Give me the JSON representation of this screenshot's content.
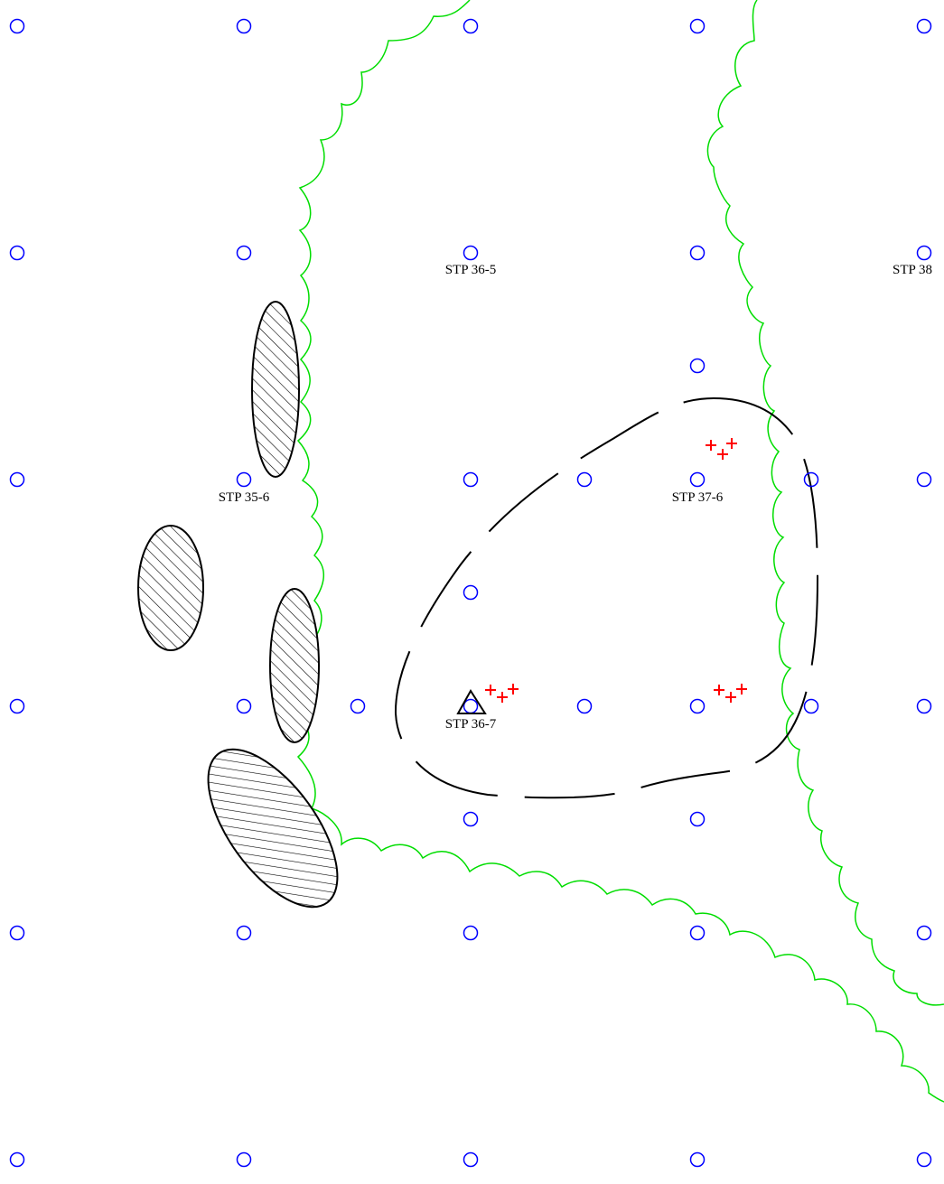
{
  "map": {
    "labels": {
      "stp_36_5": "STP 36-5",
      "stp_38_partial": "STP 38",
      "stp_35_6": "STP 35-6",
      "stp_37_6": "STP 37-6",
      "stp_36_7": "STP 36-7"
    },
    "colors": {
      "test_pit": "#0000ff",
      "vegetation_line": "#00dd00",
      "artifact_cross": "#ff0000",
      "site_boundary": "#000000",
      "hatched_feature": "#000000"
    },
    "symbols": {
      "test_pit": "circle",
      "artifact": "red-cross",
      "datum": "triangle",
      "feature": "hatched-ellipse",
      "boundary": "dashed-line",
      "vegetation_edge": "scalloped-line"
    }
  }
}
